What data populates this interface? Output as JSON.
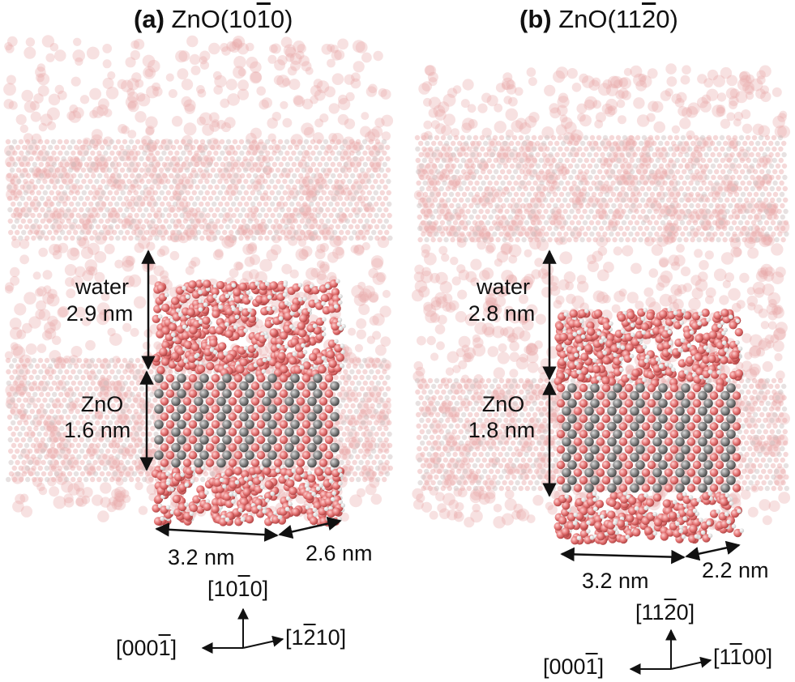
{
  "panels": [
    {
      "id": "a",
      "title_tag": "(a)",
      "title_pre": "ZnO(10",
      "title_bar": "1",
      "title_post": "0)",
      "water_word": "water",
      "water_thickness": "2.9 nm",
      "zno_word": "ZnO",
      "zno_thickness": "1.6 nm",
      "width_x": "3.2 nm",
      "width_y": "2.6 nm",
      "axis_up": {
        "pre": "[10",
        "bar": "1",
        "post": "0]"
      },
      "axis_left": {
        "pre": "[000",
        "bar": "1",
        "post": "]"
      },
      "axis_right": {
        "pre": "[1",
        "bar": "2",
        "post": "10]"
      }
    },
    {
      "id": "b",
      "title_tag": "(b)",
      "title_pre": "ZnO(11",
      "title_bar": "2",
      "title_post": "0)",
      "water_word": "water",
      "water_thickness": "2.8 nm",
      "zno_word": "ZnO",
      "zno_thickness": "1.8 nm",
      "width_x": "3.2 nm",
      "width_y": "2.2 nm",
      "axis_up": {
        "pre": "[11",
        "bar": "2",
        "post": "0]"
      },
      "axis_left": {
        "pre": "[000",
        "bar": "1",
        "post": "]"
      },
      "axis_right": {
        "pre": "[1",
        "bar": "1",
        "post": "00]"
      }
    }
  ],
  "colors": {
    "oxygen": "#e06c6c",
    "hydrogen": "#f2f2f2",
    "zinc": "#6f6f6f",
    "periodic_image": "#e9a9a9",
    "arrow": "#111111"
  }
}
